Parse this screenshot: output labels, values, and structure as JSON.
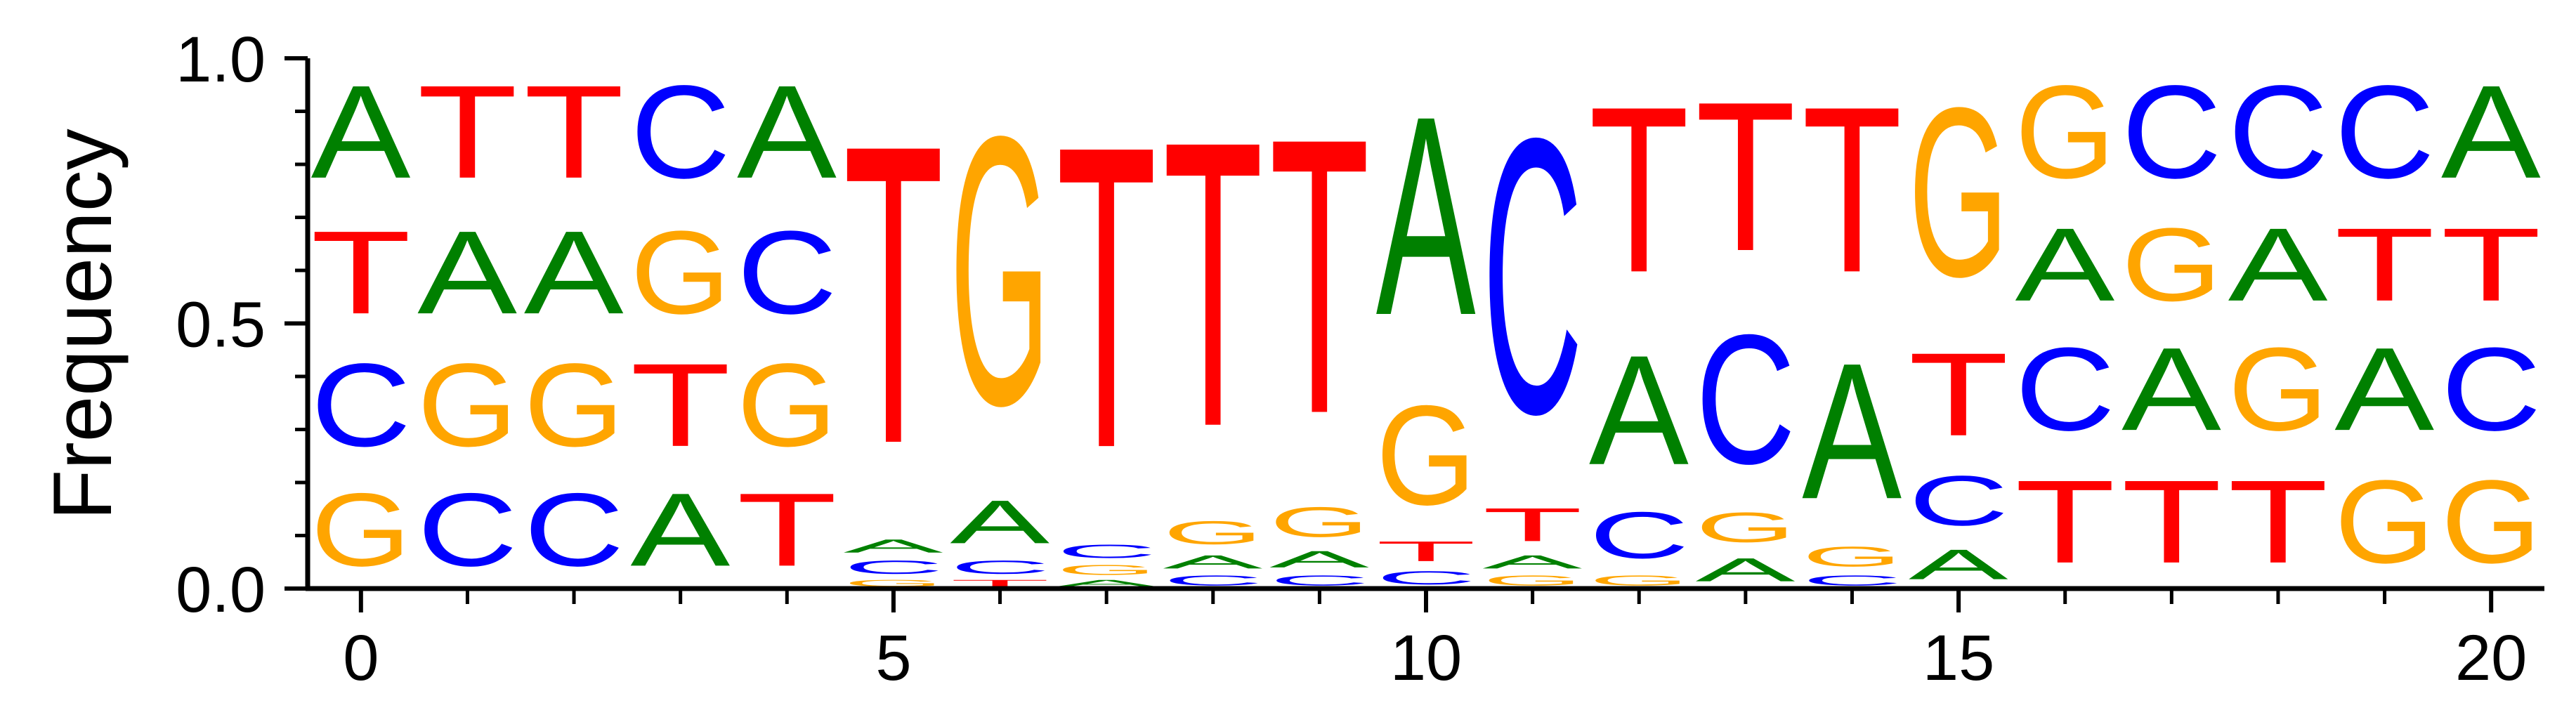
{
  "chart_data": {
    "type": "sequence-logo",
    "ylabel": "Frequency",
    "ylim": [
      0,
      1
    ],
    "yticks": [
      "0.0",
      "0.5",
      "1.0"
    ],
    "xlim": [
      -0.5,
      20.5
    ],
    "xticks": [
      "0",
      "5",
      "10",
      "15",
      "20"
    ],
    "colors": {
      "A": "#008000",
      "C": "#0000FF",
      "G": "#FFA500",
      "T": "#FF0000"
    },
    "positions": [
      {
        "x": 0,
        "stack": [
          [
            "G",
            0.22
          ],
          [
            "C",
            0.25
          ],
          [
            "T",
            0.25
          ],
          [
            "A",
            0.28
          ]
        ]
      },
      {
        "x": 1,
        "stack": [
          [
            "C",
            0.22
          ],
          [
            "G",
            0.25
          ],
          [
            "A",
            0.25
          ],
          [
            "T",
            0.28
          ]
        ]
      },
      {
        "x": 2,
        "stack": [
          [
            "C",
            0.22
          ],
          [
            "G",
            0.25
          ],
          [
            "A",
            0.25
          ],
          [
            "T",
            0.28
          ]
        ]
      },
      {
        "x": 3,
        "stack": [
          [
            "A",
            0.22
          ],
          [
            "T",
            0.25
          ],
          [
            "G",
            0.25
          ],
          [
            "C",
            0.28
          ]
        ]
      },
      {
        "x": 4,
        "stack": [
          [
            "T",
            0.22
          ],
          [
            "G",
            0.25
          ],
          [
            "C",
            0.25
          ],
          [
            "A",
            0.28
          ]
        ]
      },
      {
        "x": 5,
        "stack": [
          [
            "G",
            0.02
          ],
          [
            "C",
            0.04
          ],
          [
            "A",
            0.04
          ],
          [
            "T",
            0.9
          ]
        ]
      },
      {
        "x": 6,
        "stack": [
          [
            "T",
            0.02
          ],
          [
            "C",
            0.04
          ],
          [
            "A",
            0.13
          ],
          [
            "G",
            0.81
          ]
        ]
      },
      {
        "x": 7,
        "stack": [
          [
            "A",
            0.02
          ],
          [
            "G",
            0.03
          ],
          [
            "C",
            0.04
          ],
          [
            "T",
            0.91
          ]
        ]
      },
      {
        "x": 8,
        "stack": [
          [
            "C",
            0.03
          ],
          [
            "A",
            0.04
          ],
          [
            "G",
            0.07
          ],
          [
            "T",
            0.86
          ]
        ]
      },
      {
        "x": 9,
        "stack": [
          [
            "C",
            0.03
          ],
          [
            "A",
            0.05
          ],
          [
            "G",
            0.09
          ],
          [
            "T",
            0.83
          ]
        ]
      },
      {
        "x": 10,
        "stack": [
          [
            "C",
            0.04
          ],
          [
            "T",
            0.06
          ],
          [
            "G",
            0.3
          ],
          [
            "A",
            0.6
          ]
        ]
      },
      {
        "x": 11,
        "stack": [
          [
            "G",
            0.03
          ],
          [
            "A",
            0.04
          ],
          [
            "T",
            0.1
          ],
          [
            "C",
            0.83
          ]
        ]
      },
      {
        "x": 12,
        "stack": [
          [
            "G",
            0.03
          ],
          [
            "C",
            0.14
          ],
          [
            "A",
            0.33
          ],
          [
            "T",
            0.5
          ]
        ]
      },
      {
        "x": 13,
        "stack": [
          [
            "A",
            0.07
          ],
          [
            "G",
            0.09
          ],
          [
            "C",
            0.39
          ],
          [
            "T",
            0.45
          ]
        ]
      },
      {
        "x": 14,
        "stack": [
          [
            "C",
            0.03
          ],
          [
            "G",
            0.06
          ],
          [
            "A",
            0.41
          ],
          [
            "T",
            0.5
          ]
        ]
      },
      {
        "x": 15,
        "stack": [
          [
            "A",
            0.09
          ],
          [
            "C",
            0.15
          ],
          [
            "T",
            0.25
          ],
          [
            "G",
            0.51
          ]
        ]
      },
      {
        "x": 16,
        "stack": [
          [
            "T",
            0.25
          ],
          [
            "C",
            0.25
          ],
          [
            "A",
            0.22
          ],
          [
            "G",
            0.28
          ]
        ]
      },
      {
        "x": 17,
        "stack": [
          [
            "T",
            0.25
          ],
          [
            "A",
            0.25
          ],
          [
            "G",
            0.22
          ],
          [
            "C",
            0.28
          ]
        ]
      },
      {
        "x": 18,
        "stack": [
          [
            "T",
            0.25
          ],
          [
            "G",
            0.25
          ],
          [
            "A",
            0.22
          ],
          [
            "C",
            0.28
          ]
        ]
      },
      {
        "x": 19,
        "stack": [
          [
            "G",
            0.25
          ],
          [
            "A",
            0.25
          ],
          [
            "T",
            0.22
          ],
          [
            "C",
            0.28
          ]
        ]
      },
      {
        "x": 20,
        "stack": [
          [
            "G",
            0.25
          ],
          [
            "C",
            0.25
          ],
          [
            "T",
            0.22
          ],
          [
            "A",
            0.28
          ]
        ]
      }
    ]
  }
}
